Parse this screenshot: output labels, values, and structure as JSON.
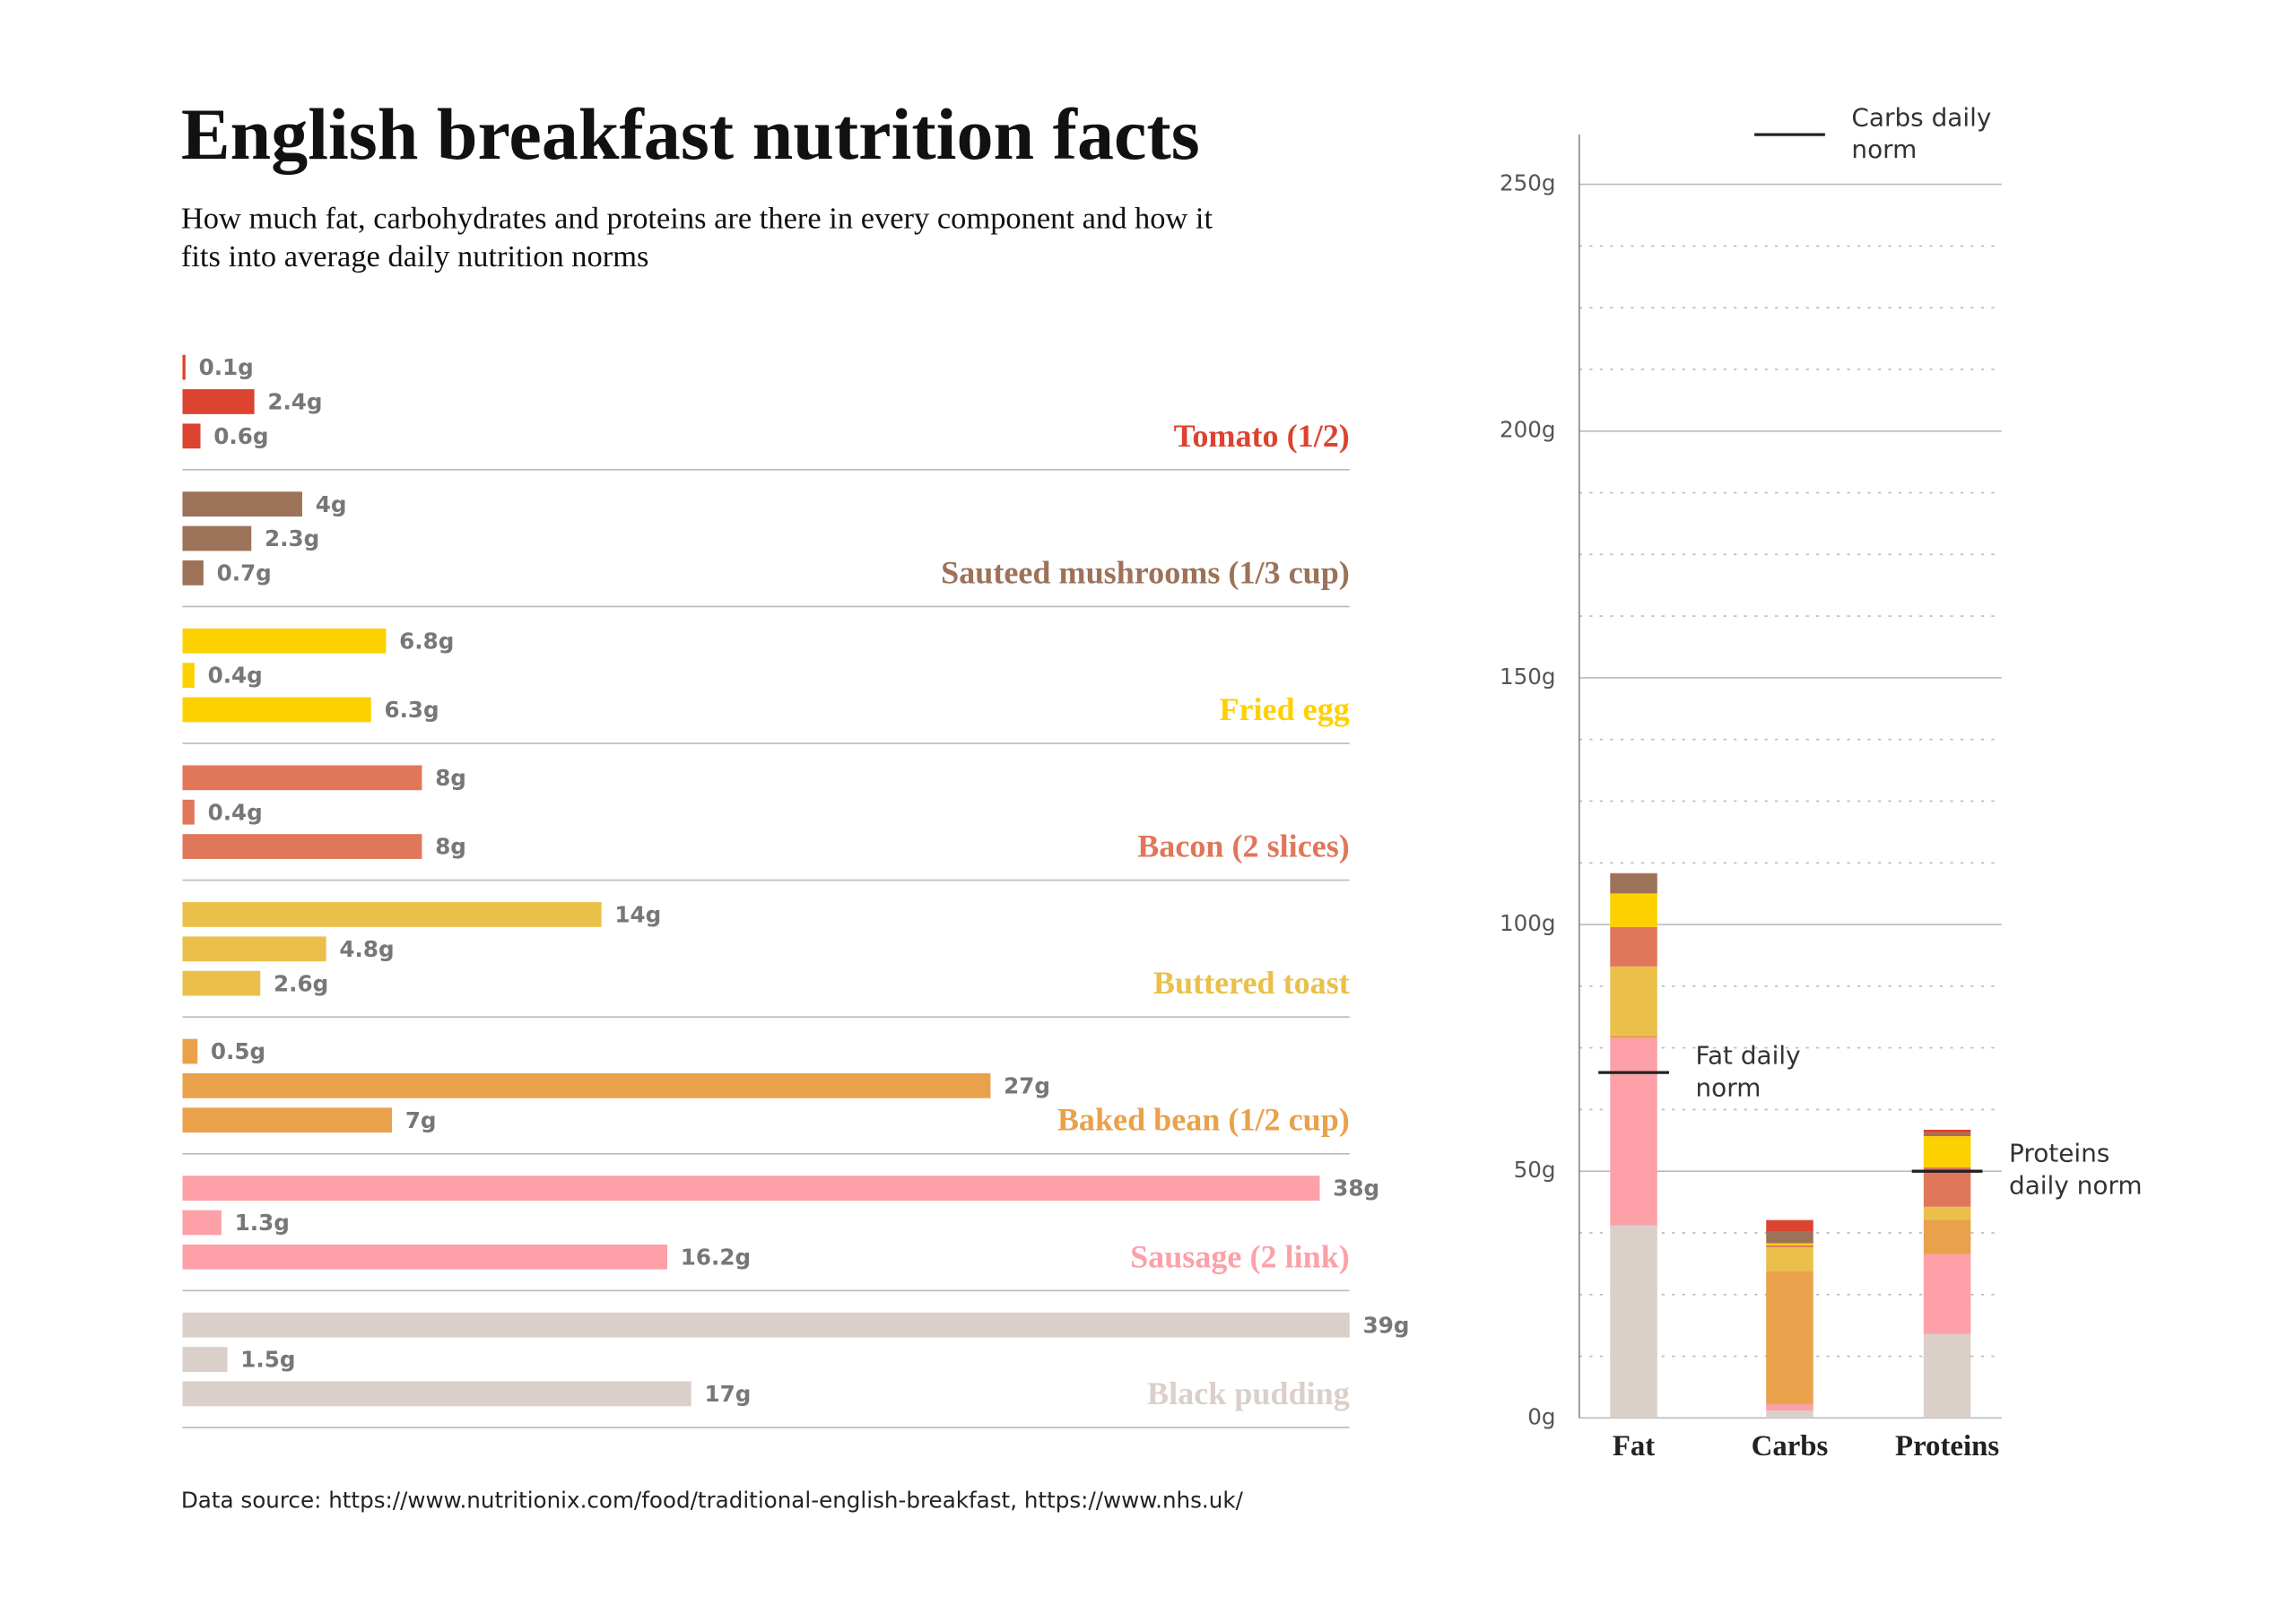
{
  "title": "English breakfast nutrition facts",
  "subtitle": "How much fat, carbohydrates and proteins are there in every component and how it fits into average daily nutrition norms",
  "source": "Data source: https://www.nutritionix.com/food/traditional-english-breakfast, https://www.nhs.uk/",
  "chart_data": {
    "type": "stacked-bar",
    "categories": [
      "Fat",
      "Carbs",
      "Proteins"
    ],
    "series": [
      {
        "name": "Tomato (1/2)",
        "color": "#dc4330",
        "values": [
          0.1,
          2.4,
          0.6
        ],
        "value_labels": [
          "0.1g",
          "2.4g",
          "0.6g"
        ]
      },
      {
        "name": "Sauteed mushrooms (1/3 cup)",
        "color": "#9c7259",
        "values": [
          4,
          2.3,
          0.7
        ],
        "value_labels": [
          "4g",
          "2.3g",
          "0.7g"
        ]
      },
      {
        "name": "Fried egg",
        "color": "#fdd100",
        "values": [
          6.8,
          0.4,
          6.3
        ],
        "value_labels": [
          "6.8g",
          "0.4g",
          "6.3g"
        ]
      },
      {
        "name": "Bacon (2 slices)",
        "color": "#e0775a",
        "values": [
          8,
          0.4,
          8
        ],
        "value_labels": [
          "8g",
          "0.4g",
          "8g"
        ]
      },
      {
        "name": "Buttered toast",
        "color": "#eac04a",
        "values": [
          14,
          4.8,
          2.6
        ],
        "value_labels": [
          "14g",
          "4.8g",
          "2.6g"
        ]
      },
      {
        "name": "Baked bean (1/2 cup)",
        "color": "#e9a14b",
        "values": [
          0.5,
          27,
          7
        ],
        "value_labels": [
          "0.5g",
          "27g",
          "7g"
        ]
      },
      {
        "name": "Sausage (2 link)",
        "color": "#fda0a8",
        "values": [
          38,
          1.3,
          16.2
        ],
        "value_labels": [
          "38g",
          "1.3g",
          "16.2g"
        ]
      },
      {
        "name": "Black pudding",
        "color": "#dbcfca",
        "values": [
          39,
          1.5,
          17
        ],
        "value_labels": [
          "39g",
          "1.5g",
          "17g"
        ]
      }
    ],
    "xlim": [
      0,
      39
    ],
    "ylim": [
      0,
      250
    ],
    "yticks": [
      {
        "value": 0,
        "label": "0g"
      },
      {
        "value": 50,
        "label": "50g"
      },
      {
        "value": 100,
        "label": "100g"
      },
      {
        "value": 150,
        "label": "150g"
      },
      {
        "value": 200,
        "label": "200g"
      },
      {
        "value": 250,
        "label": "250g"
      }
    ],
    "minor_yticks": [
      12.5,
      25,
      37.5,
      62.5,
      75,
      87.5,
      112.5,
      125,
      137.5,
      162.5,
      175,
      187.5,
      212.5,
      225,
      237.5
    ],
    "norms": [
      {
        "label": "Fat daily norm",
        "value": 70
      },
      {
        "label": "Carbs daily norm",
        "value": 260
      },
      {
        "label": "Proteins daily norm",
        "value": 50
      }
    ]
  }
}
